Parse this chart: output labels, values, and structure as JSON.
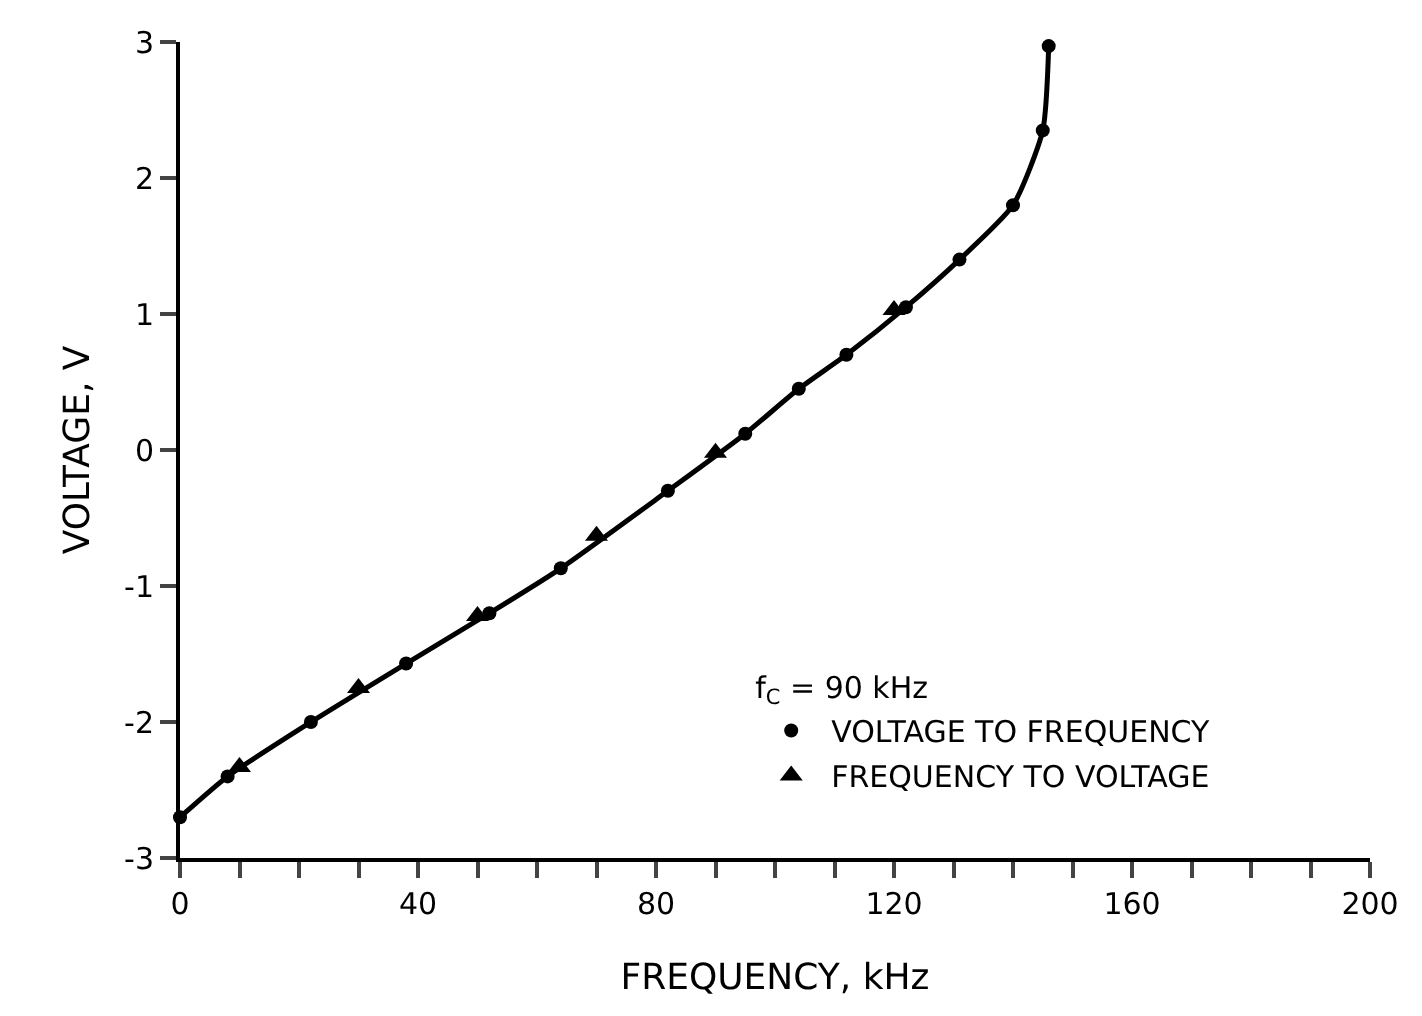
{
  "chart_data": {
    "type": "scatter",
    "xlabel": "FREQUENCY, kHz",
    "ylabel": "VOLTAGE, V",
    "legend_title": "f$_{C}$ = 90 kHz",
    "xlim": [
      0,
      200
    ],
    "ylim": [
      -3,
      3
    ],
    "xticks": [
      0,
      {
        "value": 10,
        "label": null
      },
      {
        "value": 20,
        "label": null
      },
      {
        "value": 30,
        "label": null
      },
      40,
      {
        "value": 50,
        "label": null
      },
      {
        "value": 60,
        "label": null
      },
      {
        "value": 70,
        "label": null
      },
      80,
      {
        "value": 90,
        "label": null
      },
      {
        "value": 100,
        "label": null
      },
      {
        "value": 110,
        "label": null
      },
      120,
      {
        "value": 130,
        "label": null
      },
      {
        "value": 140,
        "label": null
      },
      {
        "value": 150,
        "label": null
      },
      160,
      {
        "value": 170,
        "label": null
      },
      {
        "value": 180,
        "label": null
      },
      {
        "value": 190,
        "label": null
      },
      200
    ],
    "yticks": [
      -3,
      -2,
      -1,
      0,
      1,
      2,
      3
    ],
    "grid": false,
    "legend": "bottom right",
    "series": [
      {
        "type": "line",
        "color": "#000000",
        "marker": "none",
        "line_style": "solid",
        "x": [
          0,
          8,
          22,
          38,
          52,
          64,
          82,
          95,
          104,
          112,
          122,
          131,
          140,
          145,
          146
        ],
        "values": [
          -2.7,
          -2.4,
          -2.0,
          -1.57,
          -1.2,
          -0.87,
          -0.3,
          0.12,
          0.45,
          0.7,
          1.05,
          1.4,
          1.8,
          2.35,
          2.97
        ]
      },
      {
        "name": "VOLTAGE TO FREQUENCY",
        "color": "#000000",
        "marker": "circle",
        "x": [
          0,
          8,
          22,
          38,
          52,
          64,
          82,
          95,
          104,
          112,
          122,
          131,
          140,
          145,
          146
        ],
        "values": [
          -2.7,
          -2.4,
          -2.0,
          -1.57,
          -1.2,
          -0.87,
          -0.3,
          0.12,
          0.45,
          0.7,
          1.05,
          1.4,
          1.8,
          2.35,
          2.97
        ]
      },
      {
        "name": "FREQUENCY TO VOLTAGE",
        "color": "#000000",
        "marker": "triangle",
        "x": [
          10,
          30,
          50,
          70,
          90,
          120
        ],
        "values": [
          -2.33,
          -1.75,
          -1.22,
          -0.63,
          -0.02,
          1.03
        ]
      }
    ]
  }
}
